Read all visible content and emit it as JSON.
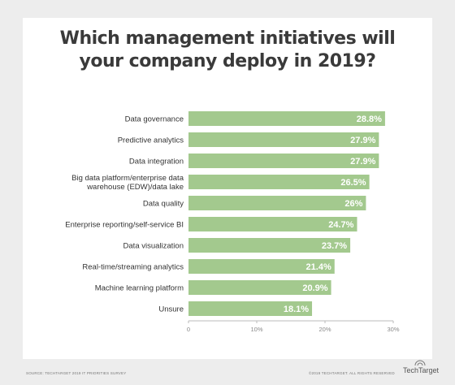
{
  "chart_data": {
    "type": "bar",
    "orientation": "horizontal",
    "title": "Which management initiatives will your company deploy in 2019?",
    "title_lines": [
      "Which management initiatives will",
      "your company deploy in 2019?"
    ],
    "categories": [
      [
        "Data governance"
      ],
      [
        "Predictive analytics"
      ],
      [
        "Data integration"
      ],
      [
        "Big data platform/enterprise data",
        "warehouse (EDW)/data lake"
      ],
      [
        "Data quality"
      ],
      [
        "Enterprise reporting/self-service BI"
      ],
      [
        "Data visualization"
      ],
      [
        "Real-time/streaming analytics"
      ],
      [
        "Machine learning platform"
      ],
      [
        "Unsure"
      ]
    ],
    "values": [
      28.8,
      27.9,
      27.9,
      26.5,
      26,
      24.7,
      23.7,
      21.4,
      20.9,
      18.1
    ],
    "value_labels": [
      "28.8%",
      "27.9%",
      "27.9%",
      "26.5%",
      "26%",
      "24.7%",
      "23.7%",
      "21.4%",
      "20.9%",
      "18.1%"
    ],
    "xticks": [
      0,
      10,
      20,
      30
    ],
    "xtick_labels": [
      "0",
      "10%",
      "20%",
      "30%"
    ],
    "xlim": [
      0,
      30
    ],
    "xlabel": "",
    "ylabel": "",
    "grid": false,
    "legend": "none",
    "colors": {
      "bar": "#a3c98e",
      "value_label": "#ffffff",
      "category_label": "#333333",
      "axis": "#bbbbbb",
      "tick_label": "#888888",
      "title": "#3a3a3a"
    }
  },
  "footer": {
    "source": "SOURCE: TECHTARGET 2019 IT PRIORITIES SURVEY",
    "copyright": "©2019 TECHTARGET. ALL RIGHTS RESERVED",
    "logo": "TechTarget"
  }
}
